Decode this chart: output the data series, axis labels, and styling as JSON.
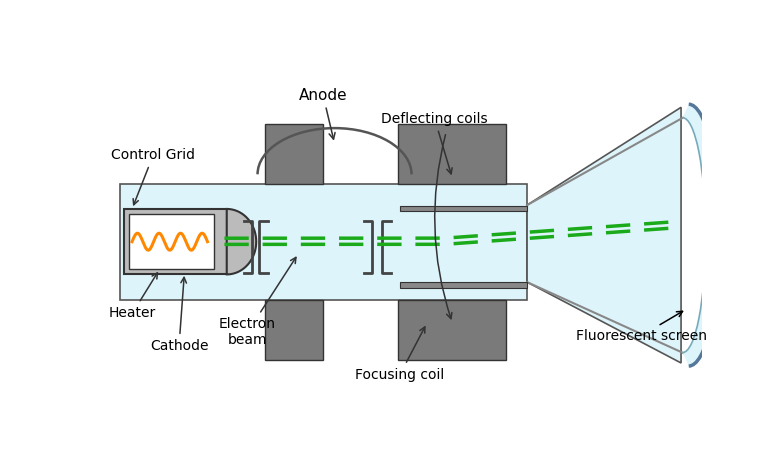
{
  "fig_width": 7.82,
  "fig_height": 4.58,
  "dpi": 100,
  "bg_color": "#ffffff",
  "light_blue": "#cceeff",
  "light_blue2": "#ddf4fb",
  "gray_coil": "#7a7a7a",
  "green_beam": "#1aaa1a",
  "orange_wave": "#ff8800",
  "dark_gray": "#555555",
  "arrow_color": "#333333",
  "labels": {
    "anode": "Anode",
    "control_grid": "Control Grid",
    "deflecting_coils": "Deflecting coils",
    "heater": "Heater",
    "cathode": "Cathode",
    "electron_beam": "Electron\nbeam",
    "focusing_coil": "Focusing coil",
    "fluorescent_screen": "Fluorescent screen"
  }
}
